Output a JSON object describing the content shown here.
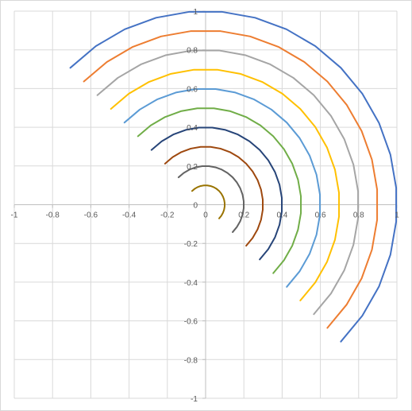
{
  "chart_data": {
    "type": "scatter",
    "title": "",
    "xlabel": "",
    "ylabel": "",
    "xlim": [
      -1,
      1
    ],
    "ylim": [
      -1,
      1
    ],
    "grid": true,
    "legend": "none",
    "x_ticks": [
      "-1",
      "-0.8",
      "-0.6",
      "-0.4",
      "-0.2",
      "0",
      "0.2",
      "0.4",
      "0.6",
      "0.8",
      "1"
    ],
    "y_ticks": [
      "1",
      "0.8",
      "0.6",
      "0.4",
      "0.2",
      "0",
      "-0.2",
      "-0.4",
      "-0.6",
      "-0.8",
      "-1"
    ],
    "x_tick_values": [
      -1,
      -0.8,
      -0.6,
      -0.4,
      -0.2,
      0,
      0.2,
      0.4,
      0.6,
      0.8,
      1
    ],
    "y_tick_values": [
      1,
      0.8,
      0.6,
      0.4,
      0.2,
      0,
      -0.2,
      -0.4,
      -0.6,
      -0.8,
      -1
    ],
    "arc_angle_start_deg": 135,
    "arc_angle_end_deg": -45,
    "arc_angle_step_deg": 10,
    "series": [
      {
        "radius": 1.0,
        "color": "#4472c4"
      },
      {
        "radius": 0.9,
        "color": "#ed7d31"
      },
      {
        "radius": 0.8,
        "color": "#a5a5a5"
      },
      {
        "radius": 0.7,
        "color": "#ffc000"
      },
      {
        "radius": 0.6,
        "color": "#5b9bd5"
      },
      {
        "radius": 0.5,
        "color": "#70ad47"
      },
      {
        "radius": 0.4,
        "color": "#264478"
      },
      {
        "radius": 0.3,
        "color": "#9e480e"
      },
      {
        "radius": 0.2,
        "color": "#636363"
      },
      {
        "radius": 0.1,
        "color": "#997300"
      }
    ]
  }
}
